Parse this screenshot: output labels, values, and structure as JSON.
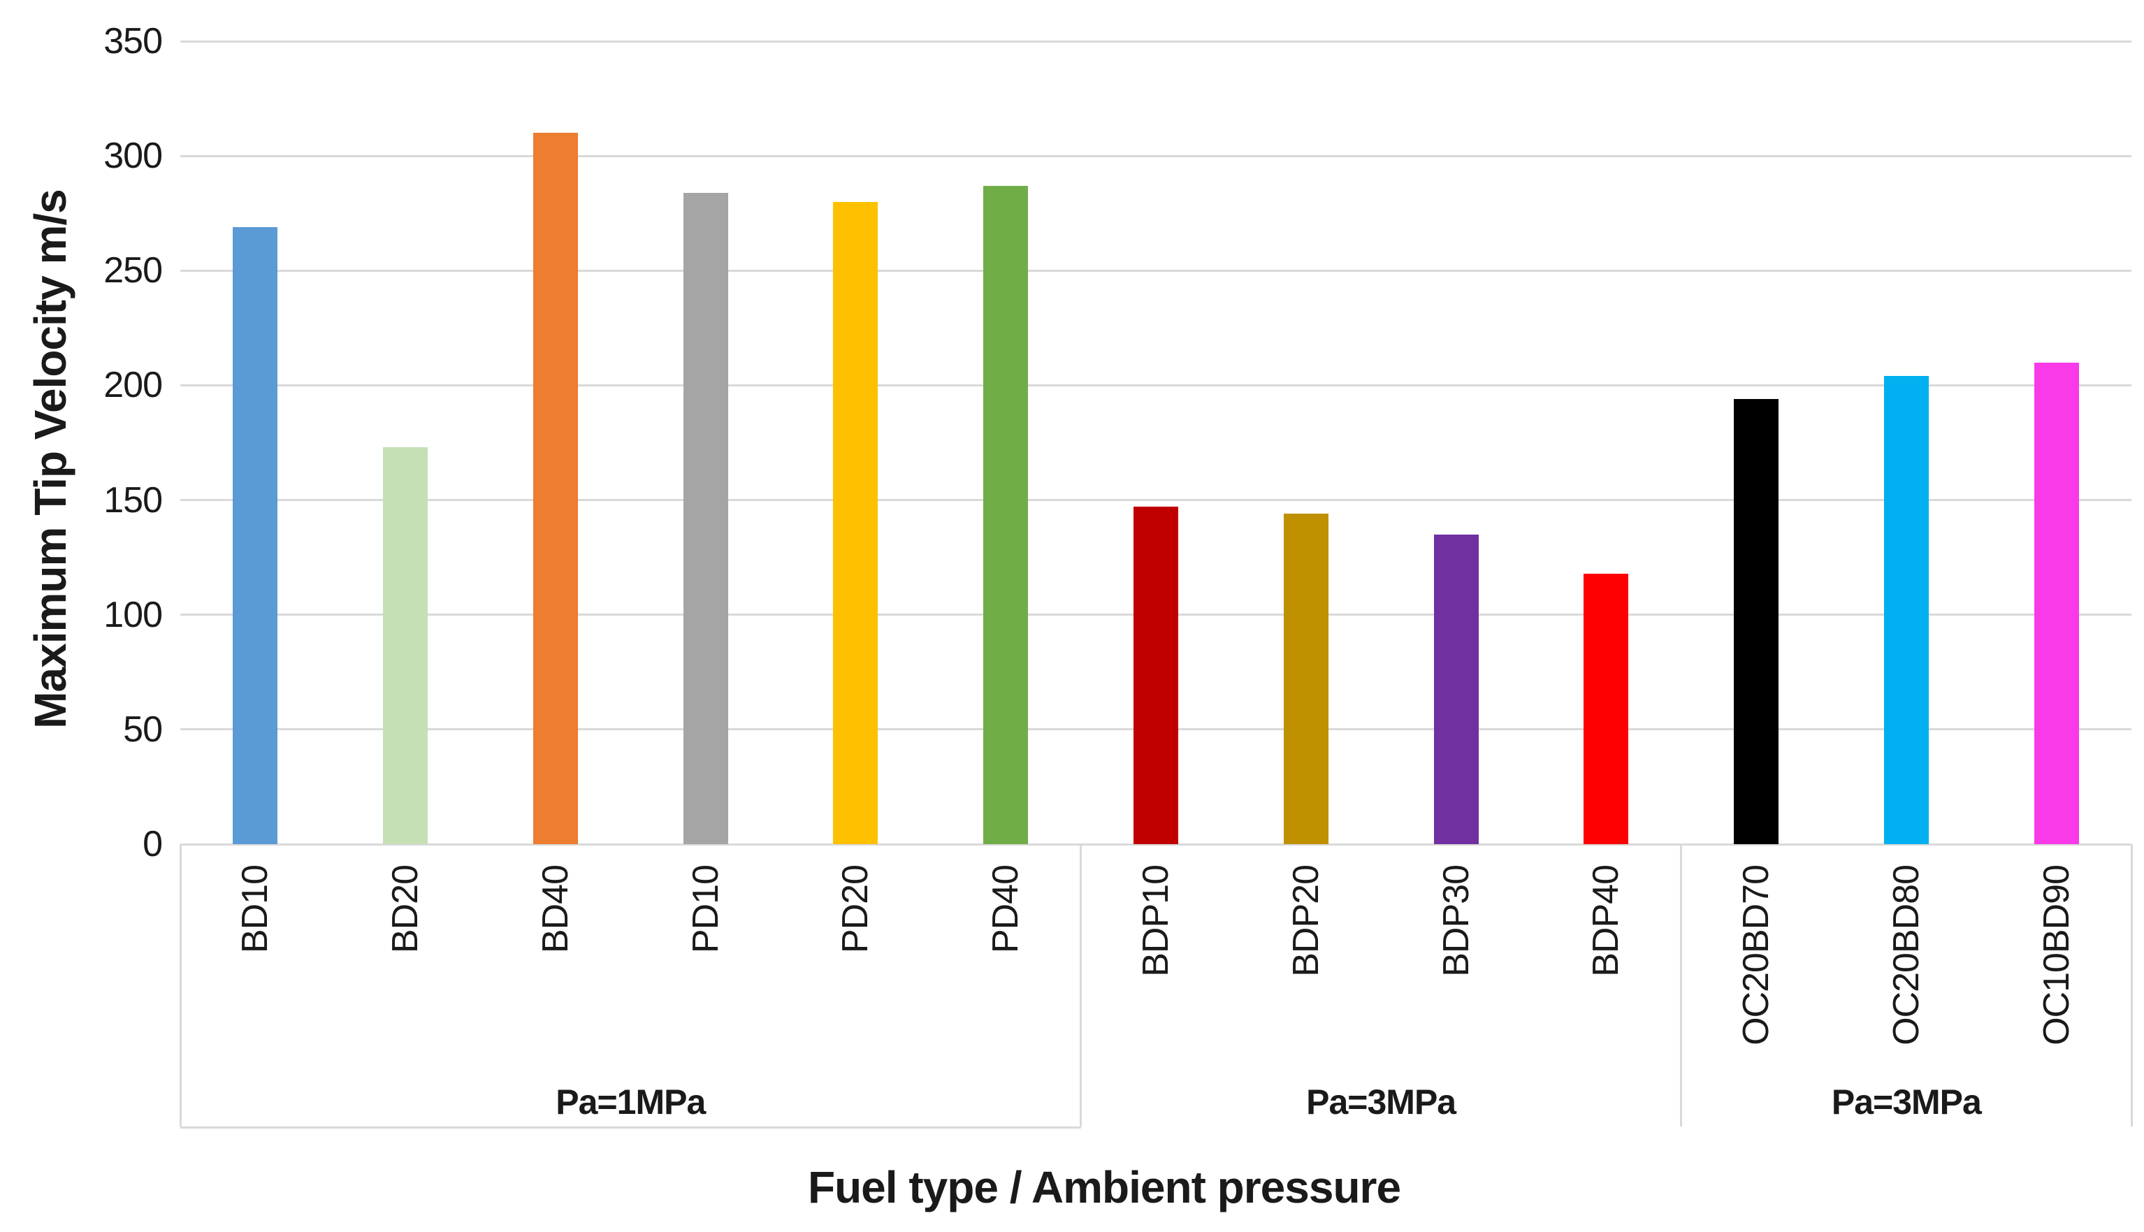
{
  "chart_data": {
    "type": "bar",
    "title": "",
    "xlabel": "Fuel type / Ambient pressure",
    "ylabel": "Maximum Tip Velocity m/s",
    "ylim": [
      0,
      350
    ],
    "yticks": [
      0,
      50,
      100,
      150,
      200,
      250,
      300,
      350
    ],
    "grid": true,
    "legend": "none",
    "categories": [
      "BD10",
      "BD20",
      "BD40",
      "PD10",
      "PD20",
      "PD40",
      "BDP10",
      "BDP20",
      "BDP30",
      "BDP40",
      "OC20BD70",
      "OC20BD80",
      "OC10BD90"
    ],
    "values": [
      269,
      173,
      310,
      284,
      280,
      287,
      147,
      144,
      135,
      118,
      194,
      204,
      210
    ],
    "bar_colors": [
      "#5B9BD5",
      "#C5E0B4",
      "#ED7D31",
      "#A5A5A5",
      "#FFC000",
      "#70AD47",
      "#C00000",
      "#BF9000",
      "#7030A0",
      "#FF0000",
      "#000000",
      "#00B0F0",
      "#F93AE8"
    ],
    "groups": [
      {
        "label": "Pa=1MPa",
        "start_index": 0,
        "end_index": 5
      },
      {
        "label": "Pa=3MPa",
        "start_index": 6,
        "end_index": 9
      },
      {
        "label": "Pa=3MPa",
        "start_index": 10,
        "end_index": 12
      }
    ]
  },
  "colors": {
    "background": "#FFFFFF",
    "gridline": "#D9D9D9",
    "axis_text": "#1A1A1A"
  }
}
